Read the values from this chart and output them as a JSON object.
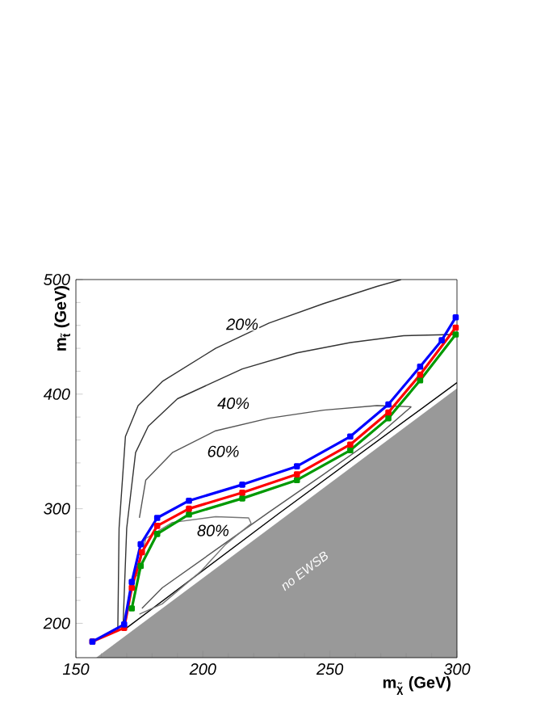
{
  "chart_data": {
    "type": "line",
    "xlabel": "m$_{χ̃}$ (GeV)",
    "ylabel": "m$_{t̃}$ (GeV)",
    "xlim": [
      150,
      300
    ],
    "ylim": [
      170,
      500
    ],
    "xticks": [
      150,
      200,
      250,
      300
    ],
    "yticks": [
      200,
      300,
      400,
      500
    ],
    "grid": false,
    "line_style": "solid",
    "marker": "none",
    "series": [
      {
        "type": "area",
        "color": "#999999",
        "x": [
          158,
          300
        ],
        "values": [
          170,
          405
        ]
      },
      {
        "color": "#000000",
        "x": [
          170,
          230,
          300
        ],
        "values": [
          196,
          296,
          410
        ]
      },
      {
        "color": "#333333",
        "x": [
          166.5,
          167,
          169.5,
          174.5,
          184,
          205,
          226,
          247.5,
          268.5,
          278
        ],
        "values": [
          194,
          283,
          363,
          390,
          411,
          440,
          462,
          479,
          494,
          500
        ]
      },
      {
        "color": "#333333",
        "x": [
          168.5,
          170,
          173.5,
          178.5,
          190,
          215.5,
          237,
          258,
          279,
          299
        ],
        "values": [
          194,
          283,
          349,
          372,
          396,
          422,
          436,
          445,
          451,
          452
        ]
      },
      {
        "color": "#555555",
        "x": [
          175,
          177.5,
          188,
          205,
          226,
          247.5,
          268.5,
          282
        ],
        "values": [
          292,
          325,
          349,
          368,
          379,
          386,
          390,
          389
        ]
      },
      {
        "color": "#555555",
        "x": [
          176,
          184,
          205,
          226,
          247.5,
          268.5,
          282
        ],
        "values": [
          213,
          231,
          264,
          297,
          330,
          363,
          389
        ]
      },
      {
        "color": "#777777",
        "x": [
          174,
          177.5,
          188,
          205,
          218,
          219
        ],
        "values": [
          241,
          274,
          288,
          293,
          292,
          287
        ]
      },
      {
        "color": "#777777",
        "x": [
          175,
          184,
          199,
          209,
          219
        ],
        "values": [
          208,
          217,
          245,
          269,
          287
        ]
      },
      {
        "color": "#009900",
        "marker": "square",
        "x": [
          172,
          175.5,
          182,
          194.5,
          215.5,
          237,
          258,
          273,
          285.5,
          299.5
        ],
        "values": [
          213,
          250,
          278,
          295,
          309,
          325,
          351,
          379,
          412,
          452
        ]
      },
      {
        "color": "#ff0000",
        "marker": "square",
        "x": [
          156.5,
          169,
          172,
          176,
          182,
          194.5,
          215.5,
          237,
          258,
          273,
          285.5,
          299.5
        ],
        "values": [
          184,
          196,
          231,
          262,
          285,
          300,
          314,
          330,
          356,
          384,
          417,
          458
        ]
      },
      {
        "color": "#0000ff",
        "marker": "square",
        "x": [
          156.5,
          169,
          172,
          175.5,
          182,
          194.5,
          215.5,
          237,
          258,
          273,
          285.5,
          294,
          299.5
        ],
        "values": [
          184,
          199,
          236,
          269,
          292,
          307,
          321,
          337,
          363,
          391,
          424,
          447,
          467
        ]
      }
    ],
    "annotations": [
      {
        "text": "20%",
        "x": 215.5,
        "y": 461
      },
      {
        "text": "40%",
        "x": 212,
        "y": 392
      },
      {
        "text": "60%",
        "x": 208,
        "y": 350
      },
      {
        "text": "80%",
        "x": 204,
        "y": 281
      },
      "no EWSB"
    ]
  }
}
